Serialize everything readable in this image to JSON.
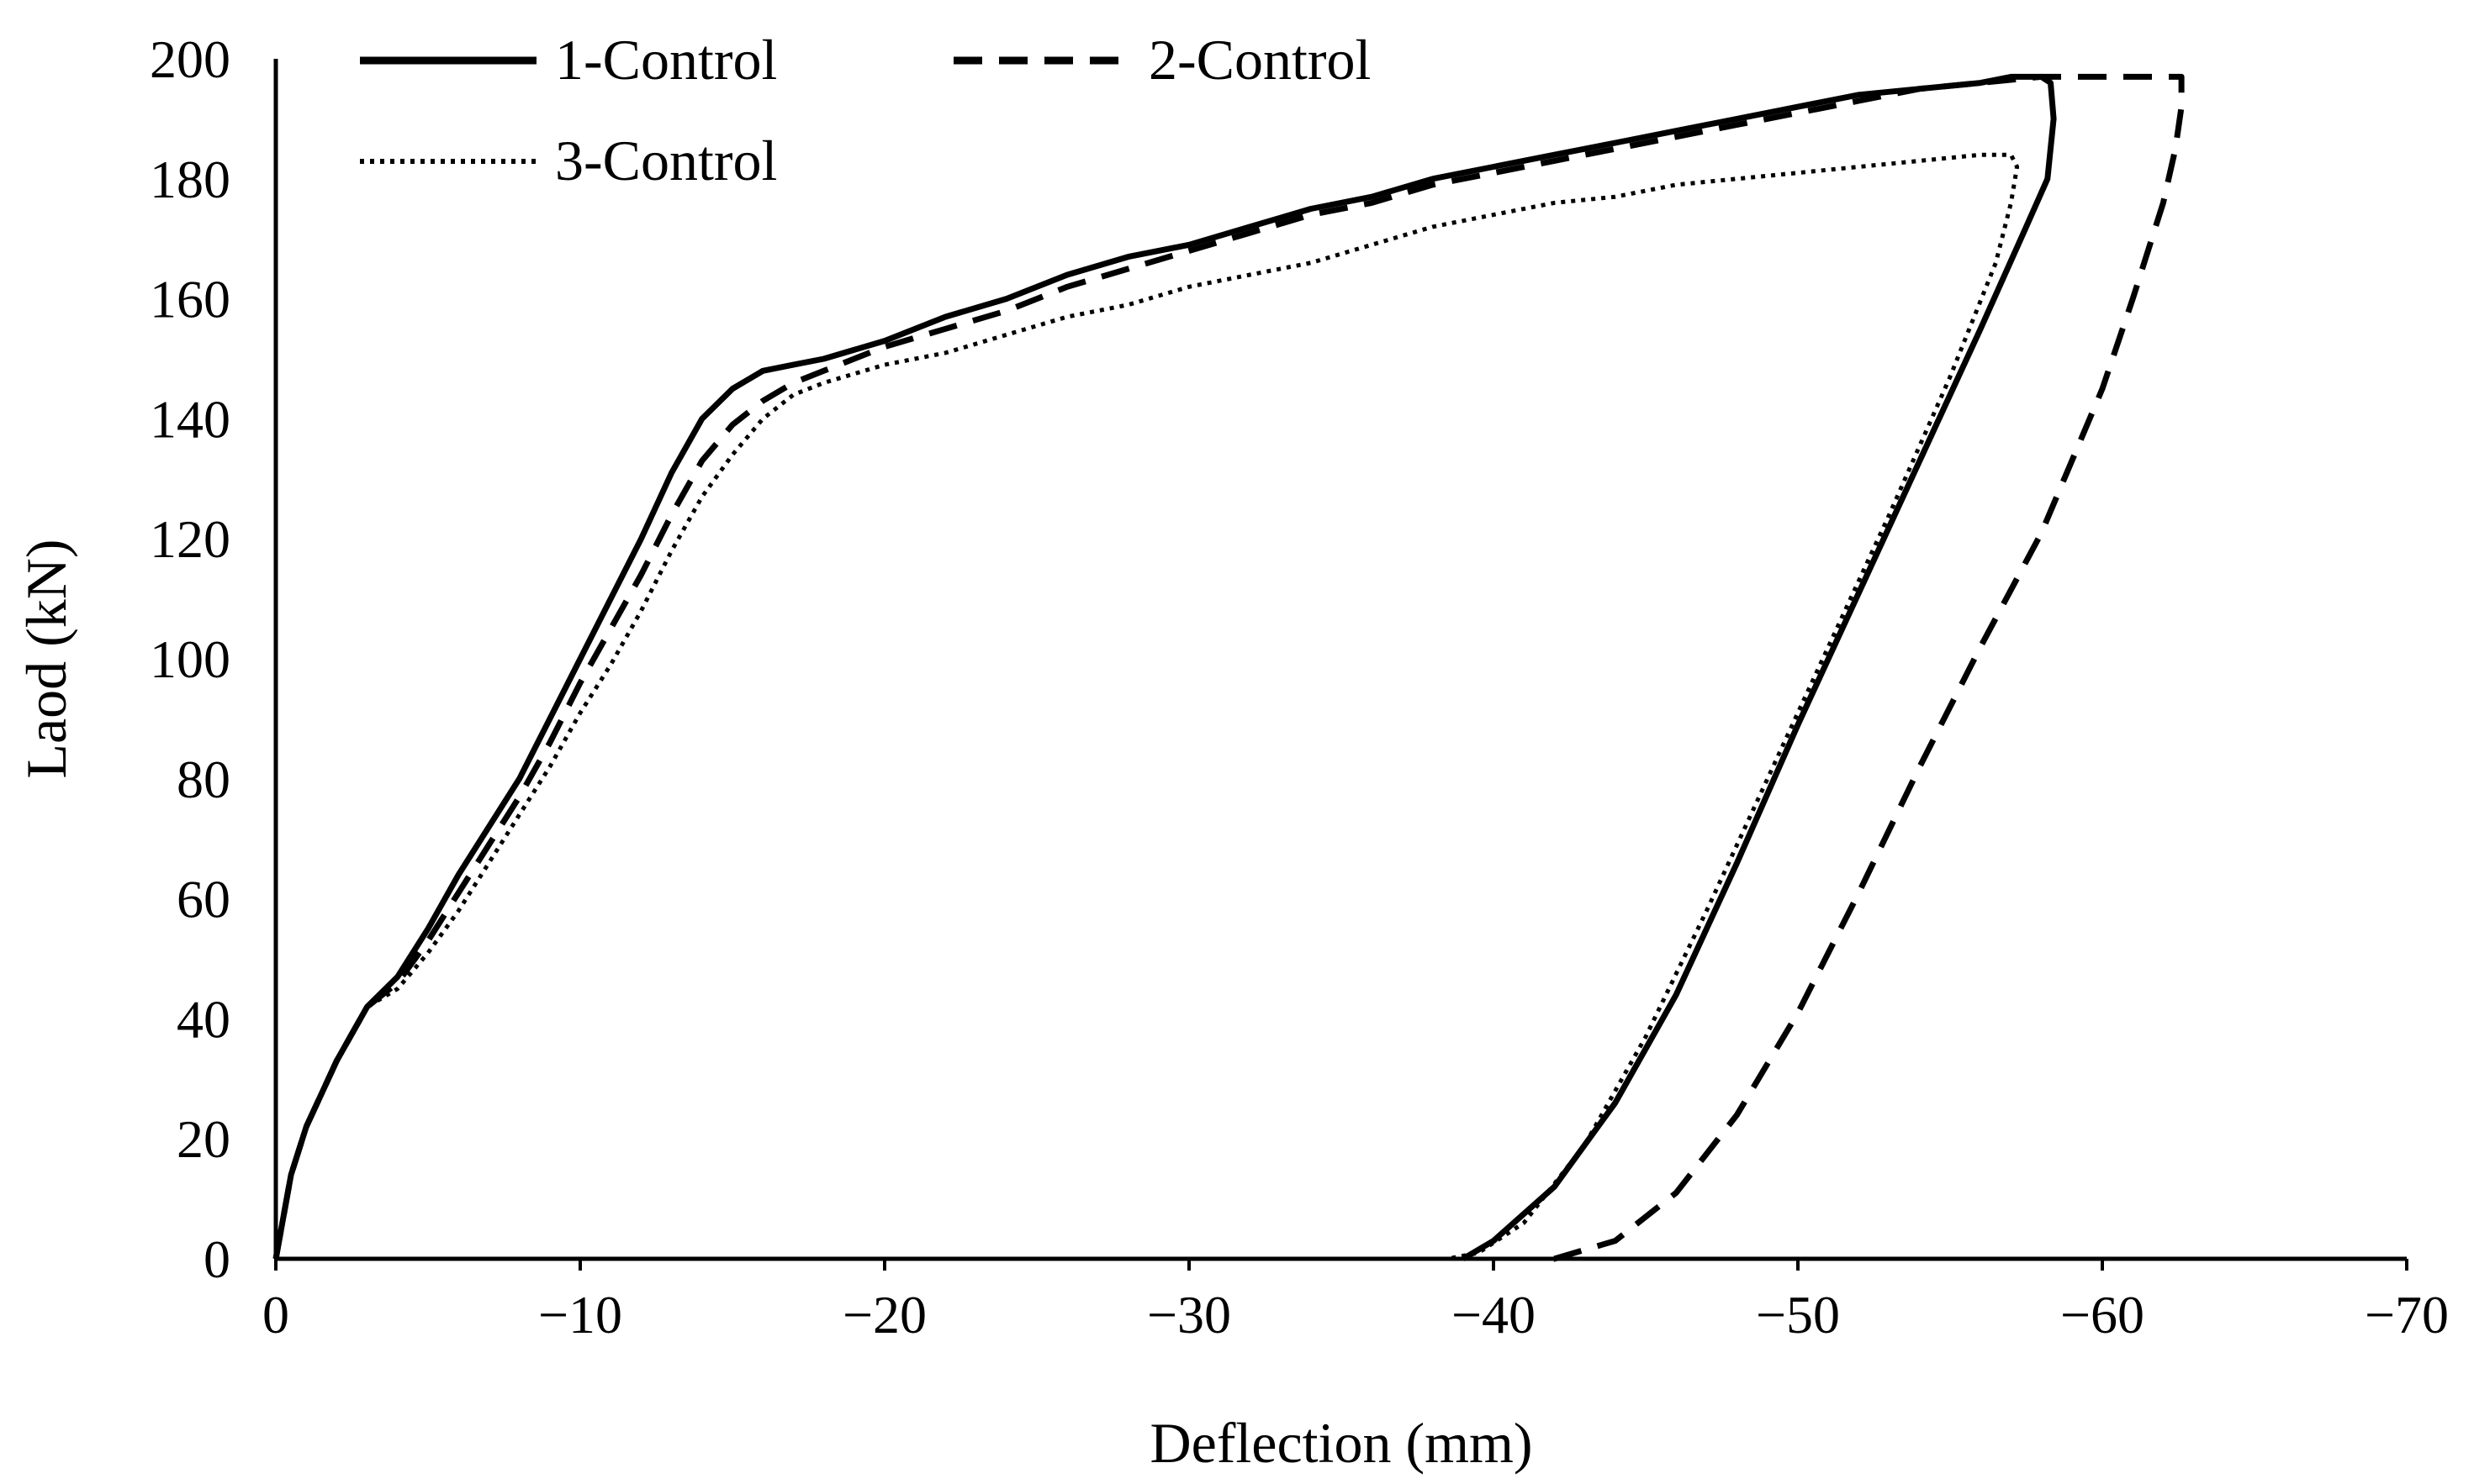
{
  "chart_data": {
    "type": "line",
    "title": "",
    "xlabel": "Deflection (mm)",
    "ylabel": "Laod (kN)",
    "xlim": [
      0,
      -70
    ],
    "ylim": [
      0,
      200
    ],
    "x_ticks": [
      "0",
      "−10",
      "−20",
      "−30",
      "−40",
      "−50",
      "−60",
      "−70"
    ],
    "y_ticks": [
      "0",
      "20",
      "40",
      "60",
      "80",
      "100",
      "120",
      "140",
      "160",
      "180",
      "200"
    ],
    "grid": false,
    "legend_position": "top",
    "series": [
      {
        "name": "1-Control",
        "style": "solid",
        "x": [
          0,
          -0.5,
          -1,
          -2,
          -3,
          -4,
          -5,
          -6,
          -7,
          -8,
          -9,
          -10,
          -11,
          -12,
          -13,
          -14,
          -15,
          -16,
          -17,
          -18,
          -20,
          -22,
          -24,
          -26,
          -28,
          -30,
          -32,
          -34,
          -36,
          -38,
          -40,
          -42,
          -44,
          -46,
          -48,
          -50,
          -52,
          -54,
          -56,
          -57,
          -58,
          -58.3,
          -58.4,
          -58.2,
          -57.5,
          -56,
          -54,
          -52,
          -50,
          -48,
          -46,
          -44,
          -42,
          -40,
          -39
        ],
        "y": [
          0,
          14,
          22,
          33,
          42,
          47,
          55,
          64,
          72,
          80,
          90,
          100,
          110,
          120,
          131,
          140,
          145,
          148,
          149,
          150,
          153,
          157,
          160,
          164,
          167,
          169,
          172,
          175,
          177,
          180,
          182,
          184,
          186,
          188,
          190,
          192,
          194,
          195,
          196,
          197,
          197,
          196,
          190,
          180,
          172,
          155,
          133,
          111,
          89,
          66,
          44,
          26,
          12,
          3,
          0
        ]
      },
      {
        "name": "2-Control",
        "style": "dashed",
        "x": [
          0,
          -0.5,
          -1,
          -2,
          -3,
          -4,
          -5,
          -6,
          -7,
          -8,
          -9,
          -10,
          -11,
          -12,
          -13,
          -14,
          -15,
          -16,
          -17,
          -18,
          -20,
          -22,
          -24,
          -26,
          -28,
          -30,
          -32,
          -34,
          -36,
          -38,
          -40,
          -42,
          -44,
          -46,
          -48,
          -50,
          -52,
          -54,
          -56,
          -58,
          -60,
          -62,
          -62.6,
          -62.6,
          -62.4,
          -62,
          -61,
          -60,
          -58,
          -56,
          -54,
          -52,
          -50,
          -48,
          -46,
          -44,
          -42,
          -41.5
        ],
        "y": [
          0,
          14,
          22,
          33,
          42,
          46,
          53,
          61,
          69,
          77,
          86,
          96,
          105,
          114,
          124,
          133,
          139,
          143,
          146,
          148,
          152,
          155,
          158,
          162,
          165,
          168,
          171,
          174,
          176,
          179,
          181,
          183,
          185,
          187,
          189,
          191,
          193,
          195,
          196,
          197,
          197,
          197,
          197,
          192,
          185,
          176,
          160,
          145,
          121,
          102,
          82,
          61,
          41,
          24,
          11,
          3,
          0,
          0
        ]
      },
      {
        "name": "3-Control",
        "style": "dotted",
        "x": [
          0,
          -0.5,
          -1,
          -2,
          -3,
          -4,
          -5,
          -6,
          -7,
          -8,
          -9,
          -10,
          -11,
          -12,
          -13,
          -14,
          -15,
          -16,
          -17,
          -18,
          -20,
          -22,
          -24,
          -26,
          -28,
          -30,
          -32,
          -34,
          -36,
          -38,
          -40,
          -42,
          -44,
          -46,
          -48,
          -50,
          -52,
          -54,
          -56,
          -57,
          -57.2,
          -57.0,
          -56.5,
          -55,
          -53,
          -51,
          -49,
          -47,
          -45,
          -43,
          -41,
          -39.5,
          -38.5
        ],
        "y": [
          0,
          14,
          22,
          33,
          42,
          45,
          51,
          58,
          66,
          74,
          82,
          91,
          99,
          108,
          118,
          127,
          134,
          140,
          144,
          146,
          149,
          151,
          154,
          157,
          159,
          162,
          164,
          166,
          169,
          172,
          174,
          176,
          177,
          179,
          180,
          181,
          182,
          183,
          184,
          184,
          182,
          176,
          166,
          147,
          124,
          102,
          80,
          58,
          37,
          19,
          6,
          1,
          0
        ]
      }
    ]
  }
}
